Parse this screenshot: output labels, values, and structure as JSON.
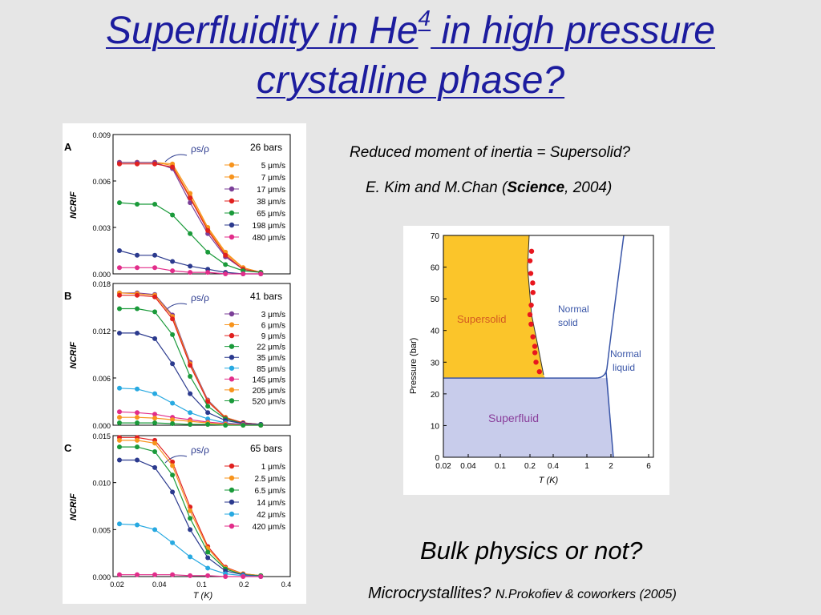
{
  "slide": {
    "title": {
      "line1_a": "Superfluidity in He",
      "line1_sup": "4",
      "line1_b": " in high pressure",
      "line2": "crystalline phase?"
    },
    "subtitle": "Reduced moment of inertia = Supersolid?",
    "citation": {
      "pre": "E. Kim and M.Chan (",
      "bold": "Science",
      "post": ", 2004)"
    },
    "question": "Bulk physics or not?",
    "footnote": {
      "main": "Microcrystallites? ",
      "small": "N.Prokofiev & coworkers (2005)"
    },
    "colors": {
      "title": "#1c1c9e",
      "background": "#e6e6e6"
    }
  },
  "chart_data": [
    {
      "type": "line",
      "panel": "A",
      "ylabel": "NCRIF",
      "annotation": "ρs/ρ",
      "pressure": "26 bars",
      "ylim": [
        0,
        0.009
      ],
      "yticks": [
        "0.009",
        "0.006",
        "0.003",
        "0.000"
      ],
      "series": [
        {
          "name": "5 μm/s",
          "color": "#f7941d",
          "values": [
            0.0072,
            0.0072,
            0.0072,
            0.0071,
            0.0052,
            0.003,
            0.0014,
            0.0004,
            0.0001
          ]
        },
        {
          "name": "7 μm/s",
          "color": "#f7941d",
          "values": [
            0.0072,
            0.0072,
            0.0072,
            0.007,
            0.005,
            0.0029,
            0.0013,
            0.0004,
            0.0001
          ]
        },
        {
          "name": "17 μm/s",
          "color": "#7b3f98",
          "values": [
            0.0072,
            0.0072,
            0.0072,
            0.0068,
            0.0046,
            0.0026,
            0.0011,
            0.0003,
            0.0001
          ]
        },
        {
          "name": "38 μm/s",
          "color": "#e0201f",
          "values": [
            0.0071,
            0.0071,
            0.0071,
            0.0069,
            0.0049,
            0.0028,
            0.0012,
            0.0003,
            0.0001
          ]
        },
        {
          "name": "65 μm/s",
          "color": "#1a9a3a",
          "values": [
            0.0046,
            0.0045,
            0.0045,
            0.0038,
            0.0026,
            0.0014,
            0.0006,
            0.0002,
            0.0001
          ]
        },
        {
          "name": "198 μm/s",
          "color": "#2b3a8e",
          "values": [
            0.0015,
            0.0012,
            0.0012,
            0.0008,
            0.0005,
            0.0003,
            0.0001,
            0.0,
            0.0
          ]
        },
        {
          "name": "480 μm/s",
          "color": "#e22d8a",
          "values": [
            0.0004,
            0.0004,
            0.0004,
            0.0002,
            0.0001,
            0.0001,
            0.0,
            0.0,
            0.0
          ]
        }
      ]
    },
    {
      "type": "line",
      "panel": "B",
      "ylabel": "NCRIF",
      "annotation": "ρs/ρ",
      "pressure": "41 bars",
      "ylim": [
        0,
        0.018
      ],
      "yticks": [
        "0.018",
        "0.012",
        "0.006",
        "0.000"
      ],
      "series": [
        {
          "name": "3 μm/s",
          "color": "#7b3f98",
          "values": [
            0.0168,
            0.0168,
            0.0166,
            0.014,
            0.008,
            0.0032,
            0.001,
            0.0003,
            0.0001
          ]
        },
        {
          "name": "6 μm/s",
          "color": "#f7941d",
          "values": [
            0.0168,
            0.0167,
            0.0165,
            0.0138,
            0.0078,
            0.0031,
            0.001,
            0.0003,
            0.0001
          ]
        },
        {
          "name": "9 μm/s",
          "color": "#e0201f",
          "values": [
            0.0165,
            0.0165,
            0.0163,
            0.0135,
            0.0076,
            0.003,
            0.0009,
            0.0003,
            0.0001
          ]
        },
        {
          "name": "22 μm/s",
          "color": "#1a9a3a",
          "values": [
            0.0148,
            0.0148,
            0.0144,
            0.0115,
            0.0062,
            0.0024,
            0.0008,
            0.0002,
            0.0001
          ]
        },
        {
          "name": "35 μm/s",
          "color": "#2b3a8e",
          "values": [
            0.0117,
            0.0117,
            0.011,
            0.0078,
            0.004,
            0.0016,
            0.0006,
            0.0002,
            0.0001
          ]
        },
        {
          "name": "85 μm/s",
          "color": "#27a9e1",
          "values": [
            0.0047,
            0.0046,
            0.004,
            0.0028,
            0.0016,
            0.0008,
            0.0003,
            0.0001,
            0.0
          ]
        },
        {
          "name": "145 μm/s",
          "color": "#e22d8a",
          "values": [
            0.0017,
            0.0016,
            0.0014,
            0.001,
            0.0007,
            0.0004,
            0.0002,
            0.0001,
            0.0
          ]
        },
        {
          "name": "205 μm/s",
          "color": "#f7941d",
          "values": [
            0.001,
            0.001,
            0.0009,
            0.0007,
            0.0005,
            0.0003,
            0.0001,
            0.0,
            0.0
          ]
        },
        {
          "name": "520 μm/s",
          "color": "#1a9a3a",
          "values": [
            0.0003,
            0.0003,
            0.0003,
            0.0002,
            0.0001,
            0.0001,
            0.0,
            0.0,
            0.0
          ]
        }
      ]
    },
    {
      "type": "line",
      "panel": "C",
      "ylabel": "NCRIF",
      "xlabel": "T (K)",
      "annotation": "ρs/ρ",
      "pressure": "65 bars",
      "ylim": [
        0,
        0.015
      ],
      "yticks": [
        "0.015",
        "0.010",
        "0.005",
        "0.000"
      ],
      "xticks": [
        "0.02",
        "0.04",
        "0.1",
        "0.2",
        "0.4"
      ],
      "series": [
        {
          "name": "1 μm/s",
          "color": "#e0201f",
          "values": [
            0.0148,
            0.0148,
            0.0145,
            0.0122,
            0.0074,
            0.0032,
            0.001,
            0.0003,
            0.0001
          ]
        },
        {
          "name": "2.5 μm/s",
          "color": "#f7941d",
          "values": [
            0.0145,
            0.0145,
            0.0142,
            0.0118,
            0.007,
            0.003,
            0.0009,
            0.0003,
            0.0001
          ]
        },
        {
          "name": "6.5 μm/s",
          "color": "#1a9a3a",
          "values": [
            0.0138,
            0.0138,
            0.0133,
            0.0108,
            0.0062,
            0.0026,
            0.0008,
            0.0002,
            0.0001
          ]
        },
        {
          "name": "14 μm/s",
          "color": "#2b3a8e",
          "values": [
            0.0124,
            0.0124,
            0.0116,
            0.009,
            0.005,
            0.002,
            0.0006,
            0.0002,
            0.0
          ]
        },
        {
          "name": "42 μm/s",
          "color": "#27a9e1",
          "values": [
            0.0056,
            0.0055,
            0.005,
            0.0036,
            0.0021,
            0.0009,
            0.0003,
            0.0001,
            0.0
          ]
        },
        {
          "name": "420 μm/s",
          "color": "#e22d8a",
          "values": [
            0.0002,
            0.0002,
            0.0002,
            0.0002,
            0.0001,
            0.0001,
            0.0,
            0.0,
            0.0
          ]
        }
      ]
    },
    {
      "type": "area",
      "title": "",
      "xlabel": "T (K)",
      "ylabel": "Pressure (bar)",
      "xticks": [
        "0.02",
        "0.04",
        "0.1",
        "0.2",
        "0.4",
        "1",
        "2",
        "6"
      ],
      "yticks": [
        "0",
        "10",
        "20",
        "30",
        "40",
        "50",
        "60",
        "70"
      ],
      "ylim": [
        0,
        70
      ],
      "regions": [
        {
          "name": "Supersolid",
          "color": "#fbc52a"
        },
        {
          "name": "Normal solid",
          "color": "#ffffff"
        },
        {
          "name": "Normal liquid",
          "color": "#ffffff"
        },
        {
          "name": "Superfluid",
          "color": "#c8cceb"
        }
      ],
      "labels": [
        "Supersolid",
        "Normal",
        "solid",
        "Normal",
        "liquid",
        "Superfluid"
      ],
      "points_pressure": [
        65,
        62,
        58,
        55,
        52,
        48,
        45,
        42,
        38,
        35,
        33,
        30,
        27
      ]
    }
  ]
}
